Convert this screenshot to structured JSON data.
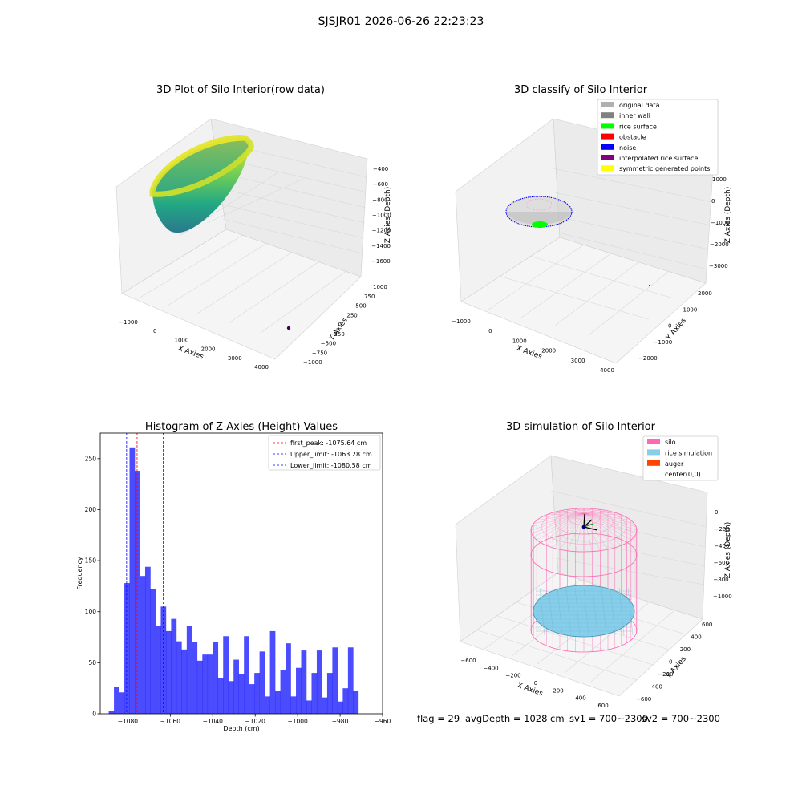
{
  "figure_title": "SJSJR01 2026-06-26 22:23:23",
  "status_line": {
    "flag": "flag = 29",
    "avg_depth": "avgDepth = 1028 cm",
    "sv1": "sv1 = 700~2300",
    "sv2": "sv2 = 700~2300"
  },
  "chart_data": [
    {
      "type": "scatter",
      "projection": "3d",
      "title": "3D Plot of Silo Interior(row data)",
      "xlabel": "X Axies",
      "ylabel": "Y Axies",
      "zlabel": "Z Axies (Depth)",
      "xticks": [
        "−1000",
        "0",
        "1000",
        "2000",
        "3000",
        "4000"
      ],
      "yticks": [
        "−1000",
        "−750",
        "−500",
        "−250",
        "0",
        "250",
        "500",
        "750",
        "1000"
      ],
      "zticks": [
        "−400",
        "−600",
        "−800",
        "−1000",
        "−1200",
        "−1400",
        "−1600"
      ],
      "colormap": "viridis",
      "shape": "bowl point cloud",
      "extra_point": {
        "color": "#440154"
      }
    },
    {
      "type": "scatter",
      "projection": "3d",
      "title": "3D classify of Silo Interior",
      "xlabel": "X Axies",
      "ylabel": "Y Axies",
      "zlabel": "Z Axies (Depth)",
      "xticks": [
        "−1000",
        "0",
        "1000",
        "2000",
        "3000",
        "4000"
      ],
      "yticks": [
        "−2000",
        "−1000",
        "0",
        "1000",
        "2000"
      ],
      "zticks": [
        "1000",
        "0",
        "−1000",
        "−2000",
        "−3000"
      ],
      "legend_position": "top-right",
      "legend": [
        {
          "label": "original data",
          "color": "#b0b0b0"
        },
        {
          "label": "inner wall",
          "color": "#808080"
        },
        {
          "label": "rice surface",
          "color": "#00ff00"
        },
        {
          "label": "obstacle",
          "color": "#ff0000"
        },
        {
          "label": "noise",
          "color": "#0000ff"
        },
        {
          "label": "interpolated rice surface",
          "color": "#800080"
        },
        {
          "label": "symmetric generated points",
          "color": "#ffff00"
        }
      ]
    },
    {
      "type": "bar",
      "title": "Histogram of Z-Axies (Height) Values",
      "xlabel": "Depth (cm)",
      "ylabel": "Frequency",
      "xlim": [
        -1093,
        -960
      ],
      "ylim": [
        0,
        275
      ],
      "xticks": [
        -1080,
        -1060,
        -1040,
        -1020,
        -1000,
        -980,
        -960
      ],
      "yticks": [
        0,
        50,
        100,
        150,
        200,
        250
      ],
      "bar_color": "#0000ff",
      "bin_start": -1089,
      "bin_width": 2.45,
      "values": [
        3,
        26,
        21,
        128,
        261,
        238,
        135,
        144,
        122,
        86,
        105,
        81,
        93,
        71,
        63,
        86,
        70,
        52,
        58,
        58,
        70,
        35,
        76,
        32,
        53,
        39,
        76,
        29,
        40,
        61,
        17,
        81,
        22,
        43,
        69,
        17,
        45,
        62,
        13,
        40,
        62,
        16,
        40,
        65,
        12,
        25,
        65,
        22
      ],
      "vlines": [
        {
          "label": "first_peak: -1075.64 cm",
          "value": -1075.64,
          "color": "#ff0000"
        },
        {
          "label": "Upper_limit: -1063.28 cm",
          "value": -1063.28,
          "color": "#0000ff"
        },
        {
          "label": "Lower_limit: -1080.58 cm",
          "value": -1080.58,
          "color": "#0000ff"
        }
      ],
      "legend_position": "top-right"
    },
    {
      "type": "scatter",
      "projection": "3d",
      "title": "3D simulation of Silo Interior",
      "xlabel": "X Axies",
      "ylabel": "Y Axies",
      "zlabel": "Z Axies (Depth)",
      "xticks": [
        "−600",
        "−400",
        "−200",
        "0",
        "200",
        "400",
        "600"
      ],
      "yticks": [
        "−600",
        "−400",
        "−200",
        "0",
        "200",
        "400",
        "600"
      ],
      "zticks": [
        "0",
        "−200",
        "−400",
        "−600",
        "−800",
        "−1000"
      ],
      "legend_position": "top-right",
      "legend": [
        {
          "label": "silo",
          "color": "#ff69b4"
        },
        {
          "label": "rice simulation",
          "color": "#87ceeb"
        },
        {
          "label": "auger",
          "color": "#ff4500"
        },
        {
          "label": "center(0,0)",
          "color": ""
        }
      ]
    }
  ]
}
